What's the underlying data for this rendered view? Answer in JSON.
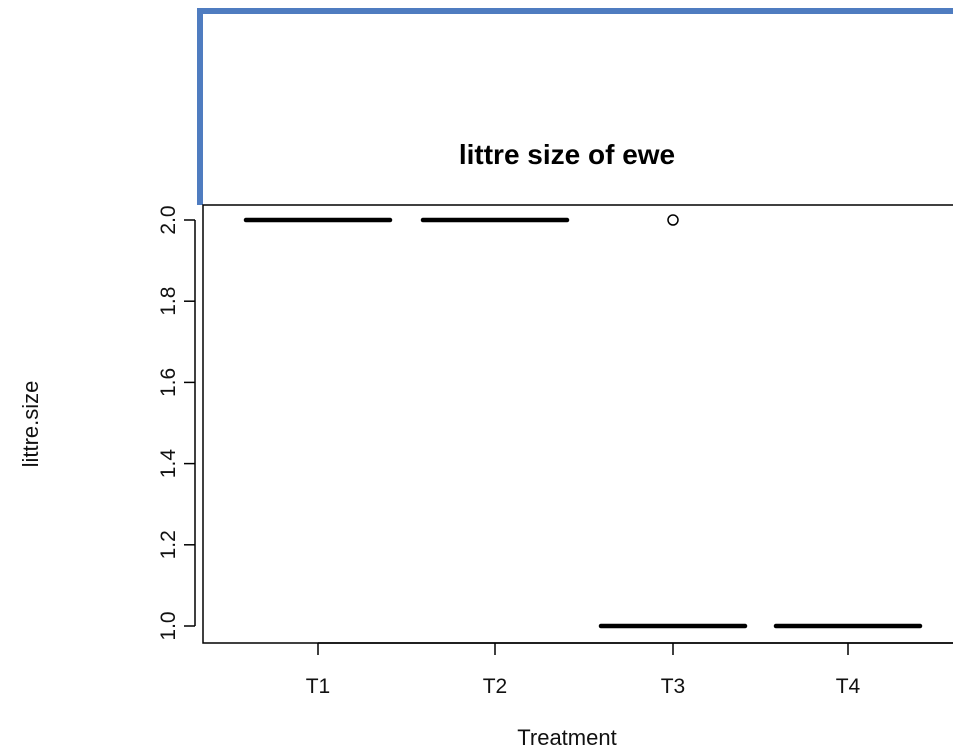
{
  "colors": {
    "frame_accent": "#4f7cc0",
    "ink": "#000000"
  },
  "chart_data": {
    "type": "box",
    "title": "littre size of  ewe",
    "xlabel": "Treatment",
    "ylabel": "littre.size",
    "categories": [
      "T1",
      "T2",
      "T3",
      "T4"
    ],
    "ylim": [
      0.97,
      2.04
    ],
    "yticks": [
      "1.0",
      "1.2",
      "1.4",
      "1.6",
      "1.8",
      "2.0"
    ],
    "series": [
      {
        "category": "T1",
        "min": 2.0,
        "q1": 2.0,
        "median": 2.0,
        "q3": 2.0,
        "max": 2.0,
        "outliers": []
      },
      {
        "category": "T2",
        "min": 2.0,
        "q1": 2.0,
        "median": 2.0,
        "q3": 2.0,
        "max": 2.0,
        "outliers": []
      },
      {
        "category": "T3",
        "min": 1.0,
        "q1": 1.0,
        "median": 1.0,
        "q3": 1.0,
        "max": 1.0,
        "outliers": [
          2.0
        ]
      },
      {
        "category": "T4",
        "min": 1.0,
        "q1": 1.0,
        "median": 1.0,
        "q3": 1.0,
        "max": 1.0,
        "outliers": []
      }
    ],
    "grid": false,
    "legend": "none"
  }
}
